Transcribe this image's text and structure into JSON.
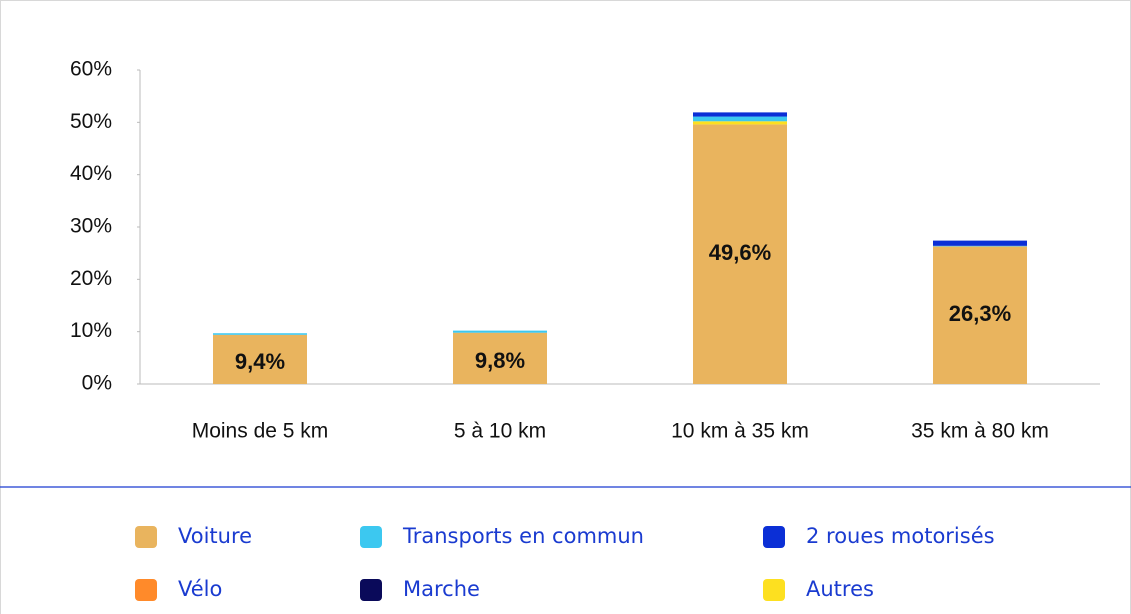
{
  "chart_data": {
    "type": "stacked_bar",
    "categories": [
      "Moins de 5 km",
      "5 à 10 km",
      "10 km à 35 km",
      "35 km à 80 km"
    ],
    "series": [
      {
        "name": "Voiture",
        "color": "#e9b45e",
        "values": [
          9.4,
          9.8,
          49.6,
          26.3
        ],
        "value_labels": [
          "9,4%",
          "9,8%",
          "49,6%",
          "26,3%"
        ]
      },
      {
        "name": "Transports en commun",
        "color": "#3cc8f0",
        "values": [
          0.3,
          0.4,
          0.9,
          0.1
        ]
      },
      {
        "name": "2 roues motorisés",
        "color": "#0b2fd6",
        "values": [
          0,
          0,
          0.8,
          1.0
        ]
      },
      {
        "name": "Vélo",
        "color": "#ff8a2a",
        "values": [
          0,
          0,
          0,
          0
        ]
      },
      {
        "name": "Marche",
        "color": "#0a0a5a",
        "values": [
          0,
          0,
          0,
          0
        ]
      },
      {
        "name": "Autres",
        "color": "#fde020",
        "values": [
          0,
          0,
          0.6,
          0
        ]
      }
    ],
    "ylim": [
      0,
      60
    ],
    "yticks": [
      {
        "value": 0,
        "label": "0%"
      },
      {
        "value": 10,
        "label": "10%"
      },
      {
        "value": 20,
        "label": "20%"
      },
      {
        "value": 30,
        "label": "30%"
      },
      {
        "value": 40,
        "label": "40%"
      },
      {
        "value": 50,
        "label": "50%"
      },
      {
        "value": 60,
        "label": "60%"
      }
    ],
    "legend": "bottom"
  }
}
